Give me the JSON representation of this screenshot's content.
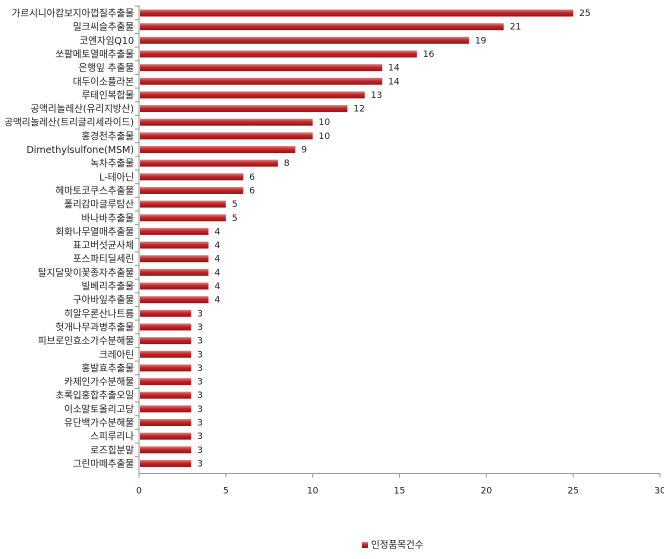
{
  "chart_data": {
    "type": "bar",
    "orientation": "horizontal",
    "categories": [
      "가르시니아캄보지아껍질추출물",
      "밀크씨슬추출물",
      "코엔자임Q10",
      "쏘팔메토열매추출물",
      "은행잎 추출물",
      "대두이소플라본",
      "루테인복합물",
      "공액리놀레산(유리지방산)",
      "공액리놀레산(트리글리세라이드)",
      "홍경천추출물",
      "Dimethylsulfone(MSM)",
      "녹차추출물",
      "L-테아닌",
      "헤마토코쿠스추출물",
      "폴리감마글루탐산",
      "바나바추출물",
      "회화나무열매추출물",
      "표고버섯균사체",
      "포스파티딜세린",
      "탈지달맞이꽃종자추출물",
      "빌베리추출물",
      "구아바잎추출물",
      "히알우론산나트륨",
      "헛개나무과병추출물",
      "피브로인효소가수분해물",
      "크레아틴",
      "홍발효추출물",
      "카제인가수분해물",
      "초록입홍합추출오일",
      "이소말토올리고당",
      "유단백가수분해물",
      "스피루리나",
      "로즈힙분말",
      "그린마떼추출물"
    ],
    "series": [
      {
        "name": "인정품목건수",
        "values": [
          25,
          21,
          19,
          16,
          14,
          14,
          13,
          12,
          10,
          10,
          9,
          8,
          6,
          6,
          5,
          5,
          4,
          4,
          4,
          4,
          4,
          4,
          3,
          3,
          3,
          3,
          3,
          3,
          3,
          3,
          3,
          3,
          3,
          3
        ]
      }
    ],
    "xlim": [
      0,
      30
    ],
    "xticks": [
      0,
      5,
      10,
      15,
      20,
      25,
      30
    ],
    "grid": false,
    "legend_position": "bottom",
    "colors": {
      "bar_main": "#c0282b",
      "bar_light": "#e8807f",
      "bar_dark": "#8e1518",
      "axis": "#9a9a9a"
    }
  }
}
